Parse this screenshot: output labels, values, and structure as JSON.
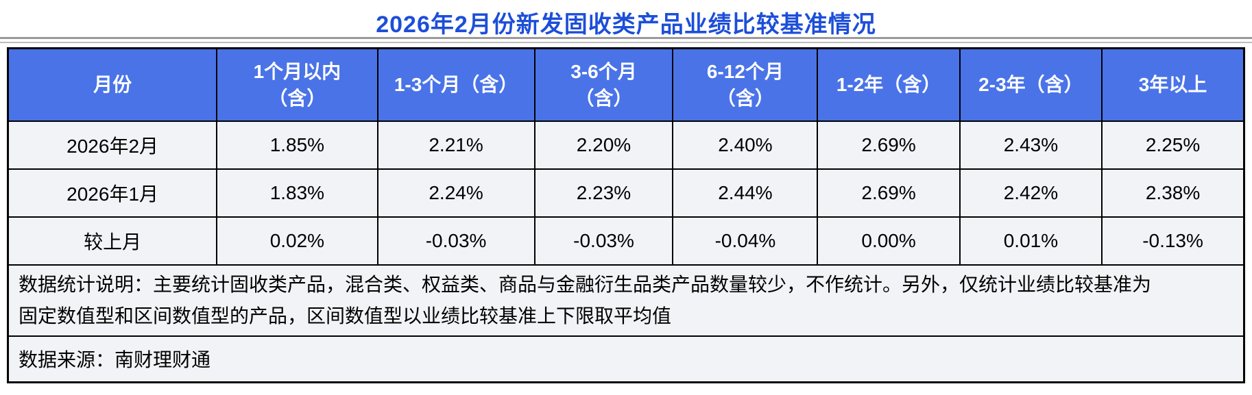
{
  "title": "2026年2月份新发固收类产品业绩比较基准情况",
  "colors": {
    "title_text": "#1C4ED8",
    "header_bg": "#4A73E8",
    "header_text": "#FFFFFF",
    "row_bg": "#F2F3F7",
    "border": "#000000",
    "separator_gray": "#9A9A9A"
  },
  "table": {
    "columns": [
      "月份",
      "1个月以内\n（含）",
      "1-3个月（含）",
      "3-6个月\n（含）",
      "6-12个月\n（含）",
      "1-2年（含）",
      "2-3年（含）",
      "3年以上"
    ],
    "rows": [
      {
        "cells": [
          "2026年2月",
          "1.85%",
          "2.21%",
          "2.20%",
          "2.40%",
          "2.69%",
          "2.43%",
          "2.25%"
        ]
      },
      {
        "cells": [
          "2026年1月",
          "1.83%",
          "2.24%",
          "2.23%",
          "2.44%",
          "2.69%",
          "2.42%",
          "2.38%"
        ]
      },
      {
        "cells": [
          "较上月",
          "0.02%",
          "-0.03%",
          "-0.03%",
          "-0.04%",
          "0.00%",
          "0.01%",
          "-0.13%"
        ]
      }
    ]
  },
  "footer": {
    "note_lines": [
      "数据统计说明：主要统计固收类产品，混合类、权益类、商品与金融衍生品类产品数量较少，不作统计。另外，仅统计业绩比较基准为",
      "固定数值型和区间数值型的产品，区间数值型以业绩比较基准上下限取平均值"
    ],
    "source": "数据来源：南财理财通"
  },
  "chart_data": {
    "type": "table",
    "title": "2026年2月份新发固收类产品业绩比较基准情况",
    "columns": [
      "月份",
      "1个月以内（含）",
      "1-3个月（含）",
      "3-6个月（含）",
      "6-12个月（含）",
      "1-2年（含）",
      "2-3年（含）",
      "3年以上"
    ],
    "rows": [
      [
        "2026年2月",
        1.85,
        2.21,
        2.2,
        2.4,
        2.69,
        2.43,
        2.25
      ],
      [
        "2026年1月",
        1.83,
        2.24,
        2.23,
        2.44,
        2.69,
        2.42,
        2.38
      ],
      [
        "较上月",
        0.02,
        -0.03,
        -0.03,
        -0.04,
        0.0,
        0.01,
        -0.13
      ]
    ],
    "value_unit": "%"
  }
}
